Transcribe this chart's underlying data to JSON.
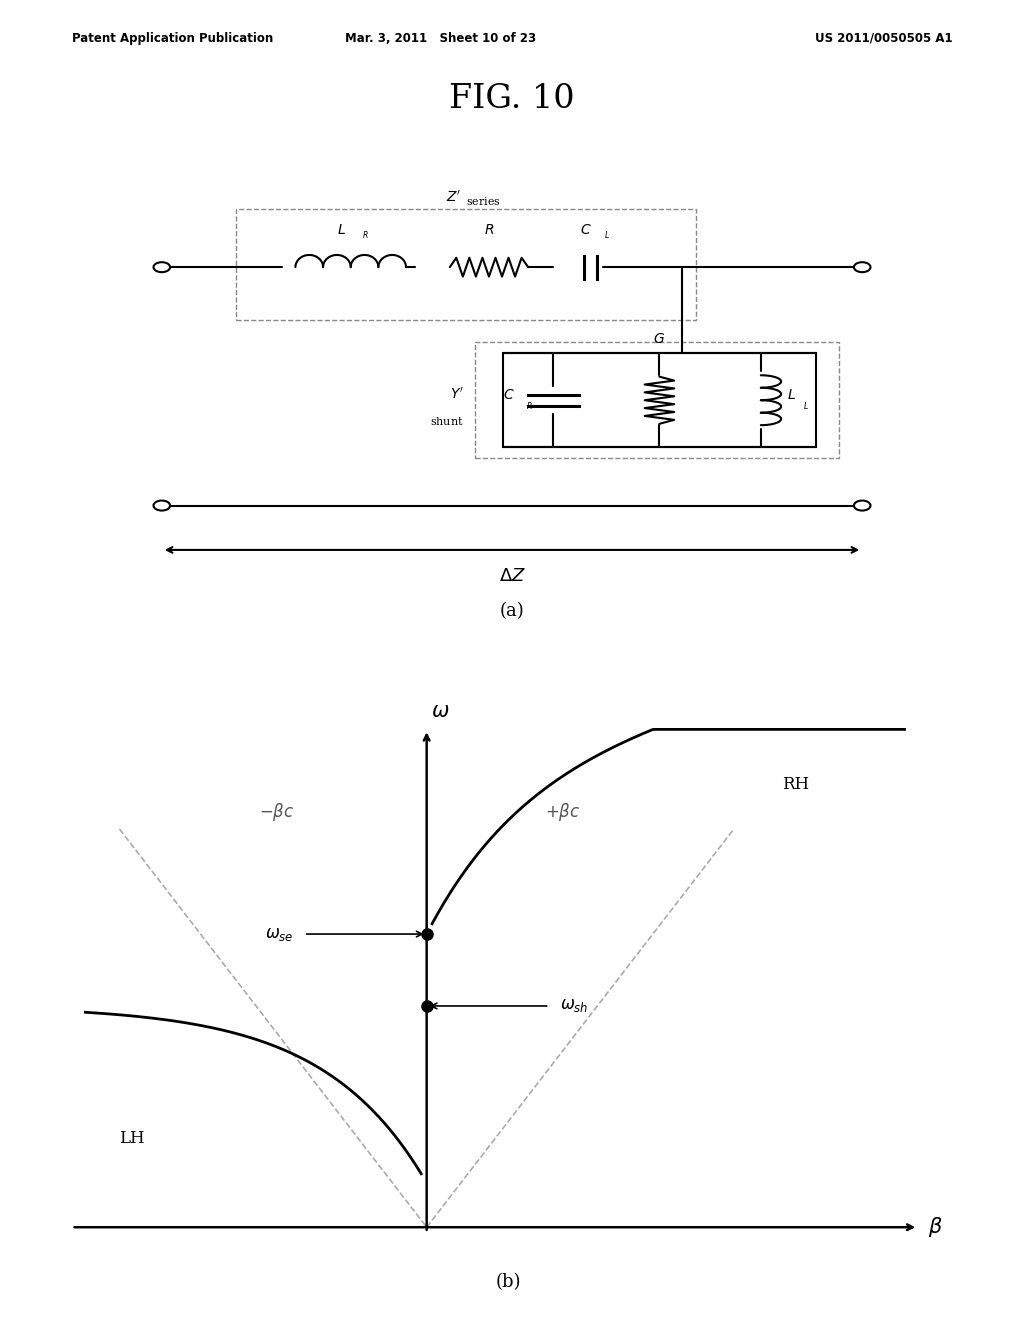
{
  "header_left": "Patent Application Publication",
  "header_mid": "Mar. 3, 2011   Sheet 10 of 23",
  "header_right": "US 2011/0050505 A1",
  "fig_title": "FIG. 10",
  "label_a": "(a)",
  "label_b": "(b)",
  "bg_color": "#ffffff",
  "line_color": "#000000",
  "dashed_color": "#aaaaaa"
}
